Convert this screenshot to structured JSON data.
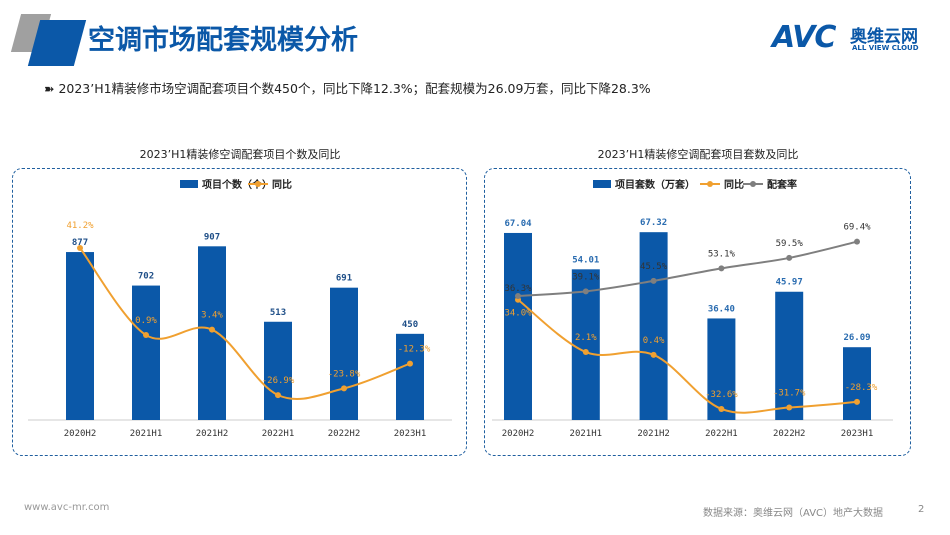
{
  "header": {
    "title": "空调市场配套规模分析",
    "logo_text": "AVC",
    "logo_cn": "奥维云网",
    "logo_en": "ALL VIEW CLOUD"
  },
  "bullet": "2023’H1精装修市场空调配套项目个数450个，同比下降12.3%；配套规模为26.09万套，同比下降28.3%",
  "footer": {
    "url": "www.avc-mr.com",
    "source": "数据来源：奥维云网（AVC）地产大数据",
    "page": "2"
  },
  "colors": {
    "bar": "#0b58a8",
    "yoy": "#f0a030",
    "rate": "#7f7f7f",
    "accent": "#0b58a8"
  },
  "chart_data": [
    {
      "type": "bar",
      "title": "2023’H1精装修空调配套项目个数及同比",
      "categories": [
        "2020H2",
        "2021H1",
        "2021H2",
        "2022H1",
        "2022H2",
        "2023H1"
      ],
      "series": [
        {
          "name": "项目个数（个）",
          "type": "bar",
          "values": [
            877,
            702,
            907,
            513,
            691,
            450
          ],
          "labels": [
            "877",
            "702",
            "907",
            "513",
            "691",
            "450"
          ]
        },
        {
          "name": "同比",
          "type": "line",
          "values": [
            41.2,
            0.9,
            3.4,
            -26.9,
            -23.8,
            -12.3
          ],
          "labels": [
            "41.2%",
            "0.9%",
            "3.4%",
            "-26.9%",
            "-23.8%",
            "-12.3%"
          ]
        }
      ],
      "legend": "top"
    },
    {
      "type": "bar",
      "title": "2023’H1精装修空调配套项目套数及同比",
      "categories": [
        "2020H2",
        "2021H1",
        "2021H2",
        "2022H1",
        "2022H2",
        "2023H1"
      ],
      "series": [
        {
          "name": "项目套数（万套）",
          "type": "bar",
          "values": [
            67.04,
            54.01,
            67.32,
            36.4,
            45.97,
            26.09
          ],
          "labels": [
            "67.04",
            "54.01",
            "67.32",
            "36.40",
            "45.97",
            "26.09"
          ]
        },
        {
          "name": "同比",
          "type": "line",
          "values": [
            34.0,
            2.1,
            0.4,
            -32.6,
            -31.7,
            -28.3
          ],
          "labels": [
            "34.0%",
            "2.1%",
            "0.4%",
            "-32.6%",
            "-31.7%",
            "-28.3%"
          ]
        },
        {
          "name": "配套率",
          "type": "line",
          "values": [
            36.3,
            39.1,
            45.5,
            53.1,
            59.5,
            69.4
          ],
          "labels": [
            "36.3%",
            "39.1%",
            "45.5%",
            "53.1%",
            "59.5%",
            "69.4%"
          ]
        }
      ],
      "legend": "top"
    }
  ]
}
